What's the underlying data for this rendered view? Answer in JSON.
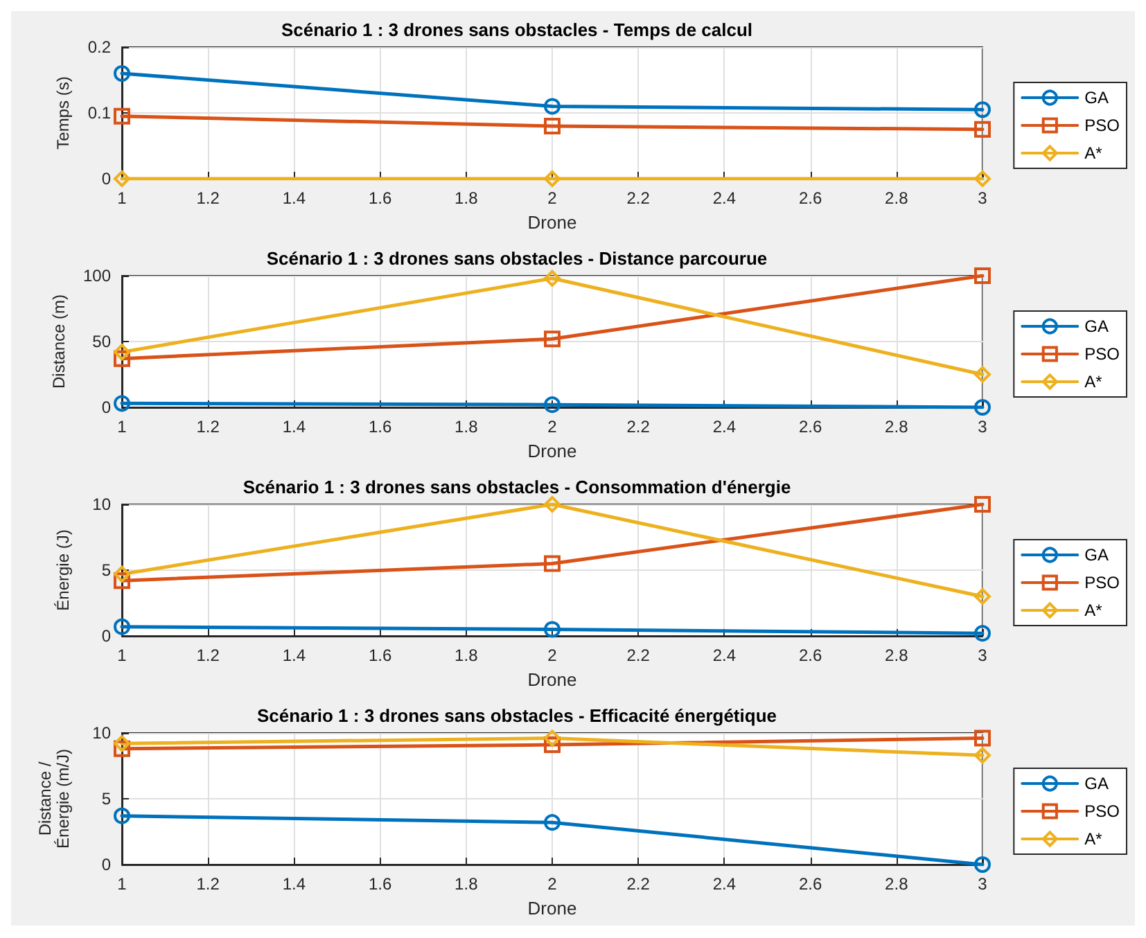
{
  "chart_data": [
    {
      "type": "line",
      "title": "Scénario 1 : 3 drones sans obstacles - Temps de calcul",
      "xlabel": "Drone",
      "ylabel": "Temps (s)",
      "x": [
        1,
        2,
        3
      ],
      "xlim": [
        1,
        3
      ],
      "xticks": [
        1,
        1.2,
        1.4,
        1.6,
        1.8,
        2,
        2.2,
        2.4,
        2.6,
        2.8,
        3
      ],
      "ylim": [
        0,
        0.2
      ],
      "yticks": [
        0,
        0.1,
        0.2
      ],
      "grid": true,
      "legend": "right",
      "series": [
        {
          "name": "GA",
          "color": "#0072bd",
          "marker": "circle",
          "values": [
            0.16,
            0.11,
            0.105
          ]
        },
        {
          "name": "PSO",
          "color": "#d95319",
          "marker": "square",
          "values": [
            0.095,
            0.08,
            0.075
          ]
        },
        {
          "name": "A*",
          "color": "#edb120",
          "marker": "diamond",
          "values": [
            0,
            0,
            0
          ]
        }
      ]
    },
    {
      "type": "line",
      "title": "Scénario 1 : 3 drones sans obstacles - Distance parcourue",
      "xlabel": "Drone",
      "ylabel": "Distance (m)",
      "x": [
        1,
        2,
        3
      ],
      "xlim": [
        1,
        3
      ],
      "xticks": [
        1,
        1.2,
        1.4,
        1.6,
        1.8,
        2,
        2.2,
        2.4,
        2.6,
        2.8,
        3
      ],
      "ylim": [
        0,
        100
      ],
      "yticks": [
        0,
        50,
        100
      ],
      "grid": true,
      "legend": "right",
      "series": [
        {
          "name": "GA",
          "color": "#0072bd",
          "marker": "circle",
          "values": [
            3,
            2,
            0
          ]
        },
        {
          "name": "PSO",
          "color": "#d95319",
          "marker": "square",
          "values": [
            37,
            52,
            100
          ]
        },
        {
          "name": "A*",
          "color": "#edb120",
          "marker": "diamond",
          "values": [
            42,
            98,
            25
          ]
        }
      ]
    },
    {
      "type": "line",
      "title": "Scénario 1 : 3 drones sans obstacles - Consommation d'énergie",
      "xlabel": "Drone",
      "ylabel": "Énergie (J)",
      "x": [
        1,
        2,
        3
      ],
      "xlim": [
        1,
        3
      ],
      "xticks": [
        1,
        1.2,
        1.4,
        1.6,
        1.8,
        2,
        2.2,
        2.4,
        2.6,
        2.8,
        3
      ],
      "ylim": [
        0,
        10
      ],
      "yticks": [
        0,
        5,
        10
      ],
      "grid": true,
      "legend": "right",
      "series": [
        {
          "name": "GA",
          "color": "#0072bd",
          "marker": "circle",
          "values": [
            0.7,
            0.5,
            0.2
          ]
        },
        {
          "name": "PSO",
          "color": "#d95319",
          "marker": "square",
          "values": [
            4.2,
            5.5,
            10
          ]
        },
        {
          "name": "A*",
          "color": "#edb120",
          "marker": "diamond",
          "values": [
            4.7,
            10,
            3
          ]
        }
      ]
    },
    {
      "type": "line",
      "title": "Scénario 1 : 3 drones sans obstacles - Efficacité énergétique",
      "xlabel": "Drone",
      "ylabel": "Distance / Énergie (m/J)",
      "x": [
        1,
        2,
        3
      ],
      "xlim": [
        1,
        3
      ],
      "xticks": [
        1,
        1.2,
        1.4,
        1.6,
        1.8,
        2,
        2.2,
        2.4,
        2.6,
        2.8,
        3
      ],
      "ylim": [
        0,
        10
      ],
      "yticks": [
        0,
        5,
        10
      ],
      "grid": true,
      "legend": "right",
      "series": [
        {
          "name": "GA",
          "color": "#0072bd",
          "marker": "circle",
          "values": [
            3.7,
            3.2,
            0
          ]
        },
        {
          "name": "PSO",
          "color": "#d95319",
          "marker": "square",
          "values": [
            8.8,
            9.1,
            9.6
          ]
        },
        {
          "name": "A*",
          "color": "#edb120",
          "marker": "diamond",
          "values": [
            9.2,
            9.6,
            8.3
          ]
        }
      ]
    }
  ]
}
